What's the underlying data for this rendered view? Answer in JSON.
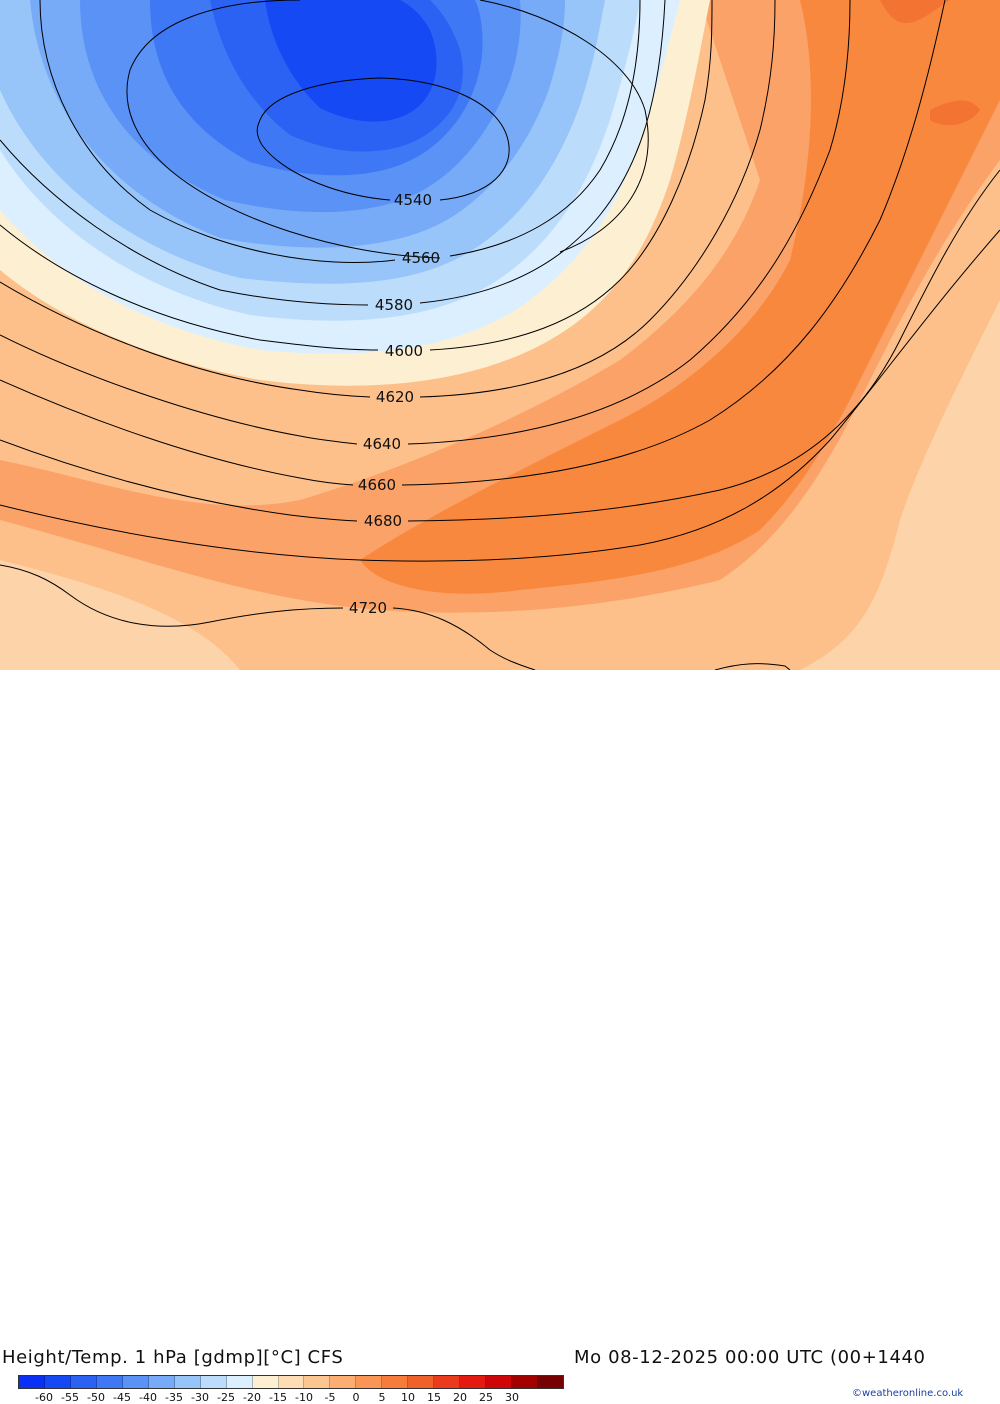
{
  "header": {
    "title": "Height/Temp. 1 hPa [gdmp][°C] CFS",
    "datetime": "Mo 08-12-2025 00:00 UTC (00+1440"
  },
  "legend": {
    "tick_labels": [
      "-60",
      "-55",
      "-50",
      "-45",
      "-40",
      "-35",
      "-30",
      "-25",
      "-20",
      "-15",
      "-10",
      "-5",
      "0",
      "5",
      "10",
      "15",
      "20",
      "25",
      "30"
    ],
    "colors": [
      "#0a2ff5",
      "#1449f4",
      "#2b62f4",
      "#3f78f5",
      "#5b92f6",
      "#77abf7",
      "#97c4f9",
      "#bcdcfb",
      "#dcefff",
      "#fdf0d2",
      "#fedcb4",
      "#fdc691",
      "#fcae72",
      "#fa9655",
      "#f67c3c",
      "#f0602a",
      "#ea3c1c",
      "#e41a10",
      "#cf0607",
      "#a30000",
      "#770000"
    ]
  },
  "contour_labels": [
    "4540",
    "4560",
    "4580",
    "4600",
    "4620",
    "4640",
    "4660",
    "4680",
    "4720"
  ],
  "credit": "©weatheronline.co.uk"
}
